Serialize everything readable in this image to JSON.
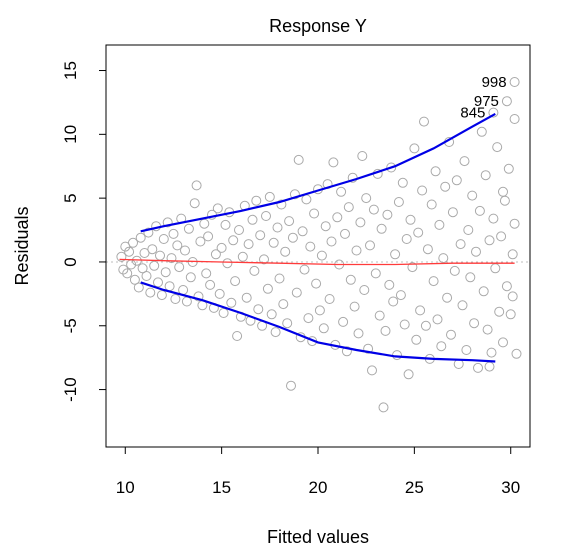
{
  "chart_data": {
    "type": "scatter",
    "title": "Response Y",
    "xlabel": "Fitted values",
    "ylabel": "Residuals",
    "xlim": [
      9,
      31
    ],
    "ylim": [
      -14.5,
      17
    ],
    "xticks": [
      "10",
      "15",
      "20",
      "25",
      "30"
    ],
    "yticks": [
      "-10",
      "-5",
      "0",
      "5",
      "10",
      "15"
    ],
    "grid": false,
    "legend": "none",
    "colors": {
      "points": "#a9a9a9",
      "envelope": "#0000e6",
      "smoother": "#ff3b3b",
      "zero_line": "#bdbdbd"
    },
    "labeled_points": [
      {
        "label": "998",
        "x": 30.2,
        "y": 14.1
      },
      {
        "label": "975",
        "x": 29.8,
        "y": 12.6
      },
      {
        "label": "845",
        "x": 29.1,
        "y": 11.7
      }
    ],
    "upper_envelope": {
      "x": [
        10.8,
        12,
        14,
        16,
        18,
        20,
        22,
        24,
        26,
        28,
        29.2
      ],
      "y": [
        2.4,
        2.8,
        3.4,
        4.0,
        4.7,
        5.6,
        6.5,
        7.5,
        8.9,
        10.6,
        11.6
      ]
    },
    "lower_envelope": {
      "x": [
        10.8,
        12,
        14,
        16,
        18,
        20,
        22,
        24,
        26,
        28,
        29.2
      ],
      "y": [
        -1.6,
        -2.2,
        -3.0,
        -4.0,
        -5.1,
        -6.3,
        -6.9,
        -7.4,
        -7.6,
        -7.7,
        -7.8
      ]
    },
    "smoother": {
      "x": [
        9.7,
        12,
        15,
        18,
        21,
        24,
        27,
        30.2
      ],
      "y": [
        0.2,
        0.1,
        0.0,
        -0.1,
        -0.2,
        -0.2,
        -0.1,
        -0.1
      ]
    },
    "points": [
      {
        "x": 9.8,
        "y": 0.4
      },
      {
        "x": 9.9,
        "y": -0.6
      },
      {
        "x": 10.0,
        "y": 1.2
      },
      {
        "x": 10.1,
        "y": -0.9
      },
      {
        "x": 10.2,
        "y": 0.8
      },
      {
        "x": 10.3,
        "y": -0.2
      },
      {
        "x": 10.4,
        "y": 1.5
      },
      {
        "x": 10.5,
        "y": -1.4
      },
      {
        "x": 10.6,
        "y": 0.1
      },
      {
        "x": 10.7,
        "y": -2.0
      },
      {
        "x": 10.8,
        "y": 1.9
      },
      {
        "x": 10.9,
        "y": -0.5
      },
      {
        "x": 11.0,
        "y": 0.7
      },
      {
        "x": 11.1,
        "y": -1.1
      },
      {
        "x": 11.2,
        "y": 2.3
      },
      {
        "x": 11.3,
        "y": -2.4
      },
      {
        "x": 11.4,
        "y": 1.0
      },
      {
        "x": 11.5,
        "y": -0.3
      },
      {
        "x": 11.6,
        "y": 2.8
      },
      {
        "x": 11.7,
        "y": -1.6
      },
      {
        "x": 11.8,
        "y": 0.5
      },
      {
        "x": 11.9,
        "y": -2.6
      },
      {
        "x": 12.0,
        "y": 1.8
      },
      {
        "x": 12.1,
        "y": -0.8
      },
      {
        "x": 12.2,
        "y": 3.1
      },
      {
        "x": 12.3,
        "y": -1.9
      },
      {
        "x": 12.4,
        "y": 0.3
      },
      {
        "x": 12.5,
        "y": 2.2
      },
      {
        "x": 12.6,
        "y": -2.9
      },
      {
        "x": 12.7,
        "y": 1.3
      },
      {
        "x": 12.8,
        "y": -0.4
      },
      {
        "x": 12.9,
        "y": 3.4
      },
      {
        "x": 13.0,
        "y": -2.2
      },
      {
        "x": 13.1,
        "y": 0.9
      },
      {
        "x": 13.2,
        "y": -3.1
      },
      {
        "x": 13.3,
        "y": 2.6
      },
      {
        "x": 13.4,
        "y": -1.2
      },
      {
        "x": 13.5,
        "y": 0.0
      },
      {
        "x": 13.6,
        "y": 4.6
      },
      {
        "x": 13.7,
        "y": 6.0
      },
      {
        "x": 13.8,
        "y": -2.7
      },
      {
        "x": 13.9,
        "y": 1.6
      },
      {
        "x": 14.0,
        "y": -3.4
      },
      {
        "x": 14.1,
        "y": 3.0
      },
      {
        "x": 14.2,
        "y": -0.9
      },
      {
        "x": 14.3,
        "y": 2.0
      },
      {
        "x": 14.4,
        "y": -1.8
      },
      {
        "x": 14.5,
        "y": 3.7
      },
      {
        "x": 14.6,
        "y": -3.6
      },
      {
        "x": 14.7,
        "y": 0.6
      },
      {
        "x": 14.8,
        "y": 4.2
      },
      {
        "x": 14.9,
        "y": -2.5
      },
      {
        "x": 15.0,
        "y": 1.1
      },
      {
        "x": 15.1,
        "y": -4.0
      },
      {
        "x": 15.2,
        "y": 2.9
      },
      {
        "x": 15.3,
        "y": -0.1
      },
      {
        "x": 15.4,
        "y": 3.9
      },
      {
        "x": 15.5,
        "y": -3.2
      },
      {
        "x": 15.6,
        "y": 1.7
      },
      {
        "x": 15.7,
        "y": -1.5
      },
      {
        "x": 15.8,
        "y": -5.8
      },
      {
        "x": 15.9,
        "y": 2.5
      },
      {
        "x": 16.0,
        "y": -4.3
      },
      {
        "x": 16.1,
        "y": 0.4
      },
      {
        "x": 16.2,
        "y": 4.4
      },
      {
        "x": 16.3,
        "y": -2.8
      },
      {
        "x": 16.4,
        "y": 1.4
      },
      {
        "x": 16.5,
        "y": -4.6
      },
      {
        "x": 16.6,
        "y": 3.3
      },
      {
        "x": 16.7,
        "y": -0.7
      },
      {
        "x": 16.8,
        "y": 4.8
      },
      {
        "x": 16.9,
        "y": -3.7
      },
      {
        "x": 17.0,
        "y": 2.1
      },
      {
        "x": 17.1,
        "y": -5.0
      },
      {
        "x": 17.2,
        "y": 0.2
      },
      {
        "x": 17.3,
        "y": 3.6
      },
      {
        "x": 17.4,
        "y": -2.1
      },
      {
        "x": 17.5,
        "y": 5.1
      },
      {
        "x": 17.6,
        "y": -4.1
      },
      {
        "x": 17.7,
        "y": 1.5
      },
      {
        "x": 17.8,
        "y": -5.5
      },
      {
        "x": 17.9,
        "y": 2.7
      },
      {
        "x": 18.0,
        "y": -1.3
      },
      {
        "x": 18.1,
        "y": 4.5
      },
      {
        "x": 18.2,
        "y": -3.3
      },
      {
        "x": 18.3,
        "y": 0.8
      },
      {
        "x": 18.4,
        "y": -4.8
      },
      {
        "x": 18.5,
        "y": 3.2
      },
      {
        "x": 18.6,
        "y": -9.7
      },
      {
        "x": 18.7,
        "y": 1.9
      },
      {
        "x": 18.8,
        "y": 5.3
      },
      {
        "x": 18.9,
        "y": -2.4
      },
      {
        "x": 19.0,
        "y": 8.0
      },
      {
        "x": 19.1,
        "y": -5.9
      },
      {
        "x": 19.2,
        "y": 2.4
      },
      {
        "x": 19.3,
        "y": -0.6
      },
      {
        "x": 19.4,
        "y": 4.9
      },
      {
        "x": 19.5,
        "y": -4.4
      },
      {
        "x": 19.6,
        "y": 1.2
      },
      {
        "x": 19.7,
        "y": -6.2
      },
      {
        "x": 19.8,
        "y": 3.8
      },
      {
        "x": 19.9,
        "y": -1.7
      },
      {
        "x": 20.0,
        "y": 5.7
      },
      {
        "x": 20.1,
        "y": -3.8
      },
      {
        "x": 20.2,
        "y": 0.5
      },
      {
        "x": 20.3,
        "y": -5.2
      },
      {
        "x": 20.4,
        "y": 2.8
      },
      {
        "x": 20.5,
        "y": 6.1
      },
      {
        "x": 20.6,
        "y": -2.9
      },
      {
        "x": 20.7,
        "y": 1.6
      },
      {
        "x": 20.8,
        "y": 7.8
      },
      {
        "x": 20.9,
        "y": -6.5
      },
      {
        "x": 21.0,
        "y": 3.5
      },
      {
        "x": 21.1,
        "y": -0.2
      },
      {
        "x": 21.2,
        "y": 5.5
      },
      {
        "x": 21.3,
        "y": -4.7
      },
      {
        "x": 21.4,
        "y": 2.2
      },
      {
        "x": 21.5,
        "y": -7.0
      },
      {
        "x": 21.6,
        "y": 4.3
      },
      {
        "x": 21.7,
        "y": -1.4
      },
      {
        "x": 21.8,
        "y": 6.6
      },
      {
        "x": 21.9,
        "y": -3.5
      },
      {
        "x": 22.0,
        "y": 0.9
      },
      {
        "x": 22.1,
        "y": -5.6
      },
      {
        "x": 22.2,
        "y": 3.1
      },
      {
        "x": 22.3,
        "y": 8.3
      },
      {
        "x": 22.4,
        "y": -2.2
      },
      {
        "x": 22.5,
        "y": 5.0
      },
      {
        "x": 22.6,
        "y": -6.8
      },
      {
        "x": 22.7,
        "y": 1.3
      },
      {
        "x": 22.8,
        "y": -8.5
      },
      {
        "x": 22.9,
        "y": 4.1
      },
      {
        "x": 23.0,
        "y": -0.9
      },
      {
        "x": 23.1,
        "y": 6.9
      },
      {
        "x": 23.2,
        "y": -4.2
      },
      {
        "x": 23.3,
        "y": 2.6
      },
      {
        "x": 23.4,
        "y": -11.4
      },
      {
        "x": 23.5,
        "y": -5.4
      },
      {
        "x": 23.6,
        "y": 3.7
      },
      {
        "x": 23.7,
        "y": -1.8
      },
      {
        "x": 23.8,
        "y": 7.4
      },
      {
        "x": 23.9,
        "y": -3.1
      },
      {
        "x": 24.0,
        "y": 0.6
      },
      {
        "x": 24.1,
        "y": -7.3
      },
      {
        "x": 24.2,
        "y": 4.7
      },
      {
        "x": 24.3,
        "y": -2.6
      },
      {
        "x": 24.4,
        "y": 6.2
      },
      {
        "x": 24.5,
        "y": -4.9
      },
      {
        "x": 24.6,
        "y": 1.8
      },
      {
        "x": 24.7,
        "y": -8.8
      },
      {
        "x": 24.8,
        "y": 3.3
      },
      {
        "x": 24.9,
        "y": -0.4
      },
      {
        "x": 25.0,
        "y": 8.9
      },
      {
        "x": 25.1,
        "y": -6.1
      },
      {
        "x": 25.2,
        "y": 2.3
      },
      {
        "x": 25.3,
        "y": -3.8
      },
      {
        "x": 25.4,
        "y": 5.6
      },
      {
        "x": 25.5,
        "y": 11.0
      },
      {
        "x": 25.6,
        "y": -5.0
      },
      {
        "x": 25.7,
        "y": 1.0
      },
      {
        "x": 25.8,
        "y": -7.6
      },
      {
        "x": 25.9,
        "y": 4.5
      },
      {
        "x": 26.0,
        "y": -1.5
      },
      {
        "x": 26.1,
        "y": 7.1
      },
      {
        "x": 26.2,
        "y": -4.5
      },
      {
        "x": 26.3,
        "y": 2.9
      },
      {
        "x": 26.4,
        "y": -6.6
      },
      {
        "x": 26.5,
        "y": 0.3
      },
      {
        "x": 26.6,
        "y": 5.9
      },
      {
        "x": 26.7,
        "y": -2.8
      },
      {
        "x": 26.8,
        "y": 9.4
      },
      {
        "x": 26.9,
        "y": -5.7
      },
      {
        "x": 27.0,
        "y": 3.9
      },
      {
        "x": 27.1,
        "y": -0.7
      },
      {
        "x": 27.2,
        "y": 6.4
      },
      {
        "x": 27.3,
        "y": -8.0
      },
      {
        "x": 27.4,
        "y": 1.4
      },
      {
        "x": 27.5,
        "y": -3.4
      },
      {
        "x": 27.6,
        "y": 7.9
      },
      {
        "x": 27.7,
        "y": -6.9
      },
      {
        "x": 27.8,
        "y": 2.5
      },
      {
        "x": 27.9,
        "y": -1.2
      },
      {
        "x": 28.0,
        "y": 5.2
      },
      {
        "x": 28.1,
        "y": -4.8
      },
      {
        "x": 28.2,
        "y": 0.8
      },
      {
        "x": 28.3,
        "y": -8.3
      },
      {
        "x": 28.4,
        "y": 4.0
      },
      {
        "x": 28.5,
        "y": 10.2
      },
      {
        "x": 28.6,
        "y": -2.3
      },
      {
        "x": 28.7,
        "y": 6.8
      },
      {
        "x": 28.8,
        "y": -5.3
      },
      {
        "x": 28.9,
        "y": 1.7
      },
      {
        "x": 29.0,
        "y": -7.1
      },
      {
        "x": 29.1,
        "y": 3.4
      },
      {
        "x": 29.2,
        "y": -0.5
      },
      {
        "x": 29.3,
        "y": 9.0
      },
      {
        "x": 29.4,
        "y": -3.9
      },
      {
        "x": 29.5,
        "y": 2.0
      },
      {
        "x": 29.6,
        "y": -6.3
      },
      {
        "x": 29.7,
        "y": 4.8
      },
      {
        "x": 29.8,
        "y": -1.9
      },
      {
        "x": 29.9,
        "y": 7.3
      },
      {
        "x": 30.0,
        "y": -4.1
      },
      {
        "x": 30.1,
        "y": 0.6
      },
      {
        "x": 30.2,
        "y": 11.2
      },
      {
        "x": 30.3,
        "y": -7.2
      },
      {
        "x": 30.2,
        "y": 3.0
      },
      {
        "x": 30.1,
        "y": -2.7
      },
      {
        "x": 29.6,
        "y": 5.5
      },
      {
        "x": 28.9,
        "y": -8.2
      }
    ]
  }
}
